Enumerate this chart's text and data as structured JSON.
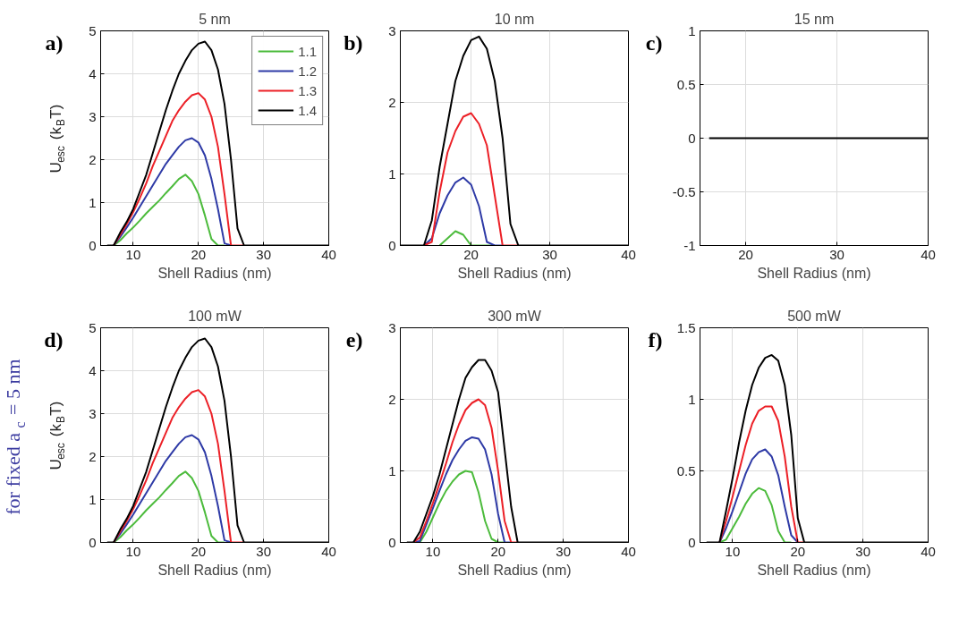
{
  "chart_data": [
    {
      "type": "line",
      "title": "5 nm",
      "xlabel": "Shell Radius (nm)",
      "ylabel": "U$_{esc}$ (k$_{B}$T)",
      "annotations": [
        "a)"
      ],
      "xlim": [
        5,
        40
      ],
      "ylim": [
        0,
        5
      ],
      "xticks": [
        10,
        20,
        30,
        40
      ],
      "yticks": [
        0,
        1,
        2,
        3,
        4,
        5
      ],
      "grid": true,
      "legend": "top right",
      "series": [
        {
          "name": "1.1",
          "color": "#4cbb3c",
          "x": [
            7,
            8,
            9,
            10,
            11,
            12,
            13,
            14,
            15,
            16,
            17,
            18,
            19,
            20,
            21,
            22,
            23,
            24
          ],
          "values": [
            0,
            0.12,
            0.28,
            0.42,
            0.58,
            0.75,
            0.9,
            1.05,
            1.22,
            1.38,
            1.55,
            1.65,
            1.5,
            1.2,
            0.7,
            0.15,
            0,
            0
          ]
        },
        {
          "name": "1.2",
          "color": "#2e3aa6",
          "x": [
            7,
            8,
            9,
            10,
            11,
            12,
            13,
            14,
            15,
            16,
            17,
            18,
            19,
            20,
            21,
            22,
            23,
            24,
            25
          ],
          "values": [
            0,
            0.2,
            0.42,
            0.65,
            0.9,
            1.15,
            1.4,
            1.65,
            1.9,
            2.1,
            2.3,
            2.45,
            2.5,
            2.4,
            2.1,
            1.55,
            0.85,
            0.05,
            0
          ]
        },
        {
          "name": "1.3",
          "color": "#ec2027",
          "x": [
            7,
            8,
            9,
            10,
            11,
            12,
            13,
            14,
            15,
            16,
            17,
            18,
            19,
            20,
            21,
            22,
            23,
            24,
            25,
            26,
            27
          ],
          "values": [
            0,
            0.25,
            0.5,
            0.78,
            1.1,
            1.45,
            1.85,
            2.2,
            2.55,
            2.9,
            3.15,
            3.35,
            3.5,
            3.55,
            3.4,
            3.0,
            2.3,
            1.2,
            0,
            0,
            0
          ]
        },
        {
          "name": "1.4",
          "color": "#000000",
          "x": [
            6,
            7,
            8,
            9,
            10,
            11,
            12,
            13,
            14,
            15,
            16,
            17,
            18,
            19,
            20,
            21,
            22,
            23,
            24,
            25,
            26,
            27,
            28,
            40
          ],
          "values": [
            0,
            0,
            0.3,
            0.55,
            0.85,
            1.25,
            1.65,
            2.15,
            2.65,
            3.15,
            3.6,
            4.0,
            4.3,
            4.55,
            4.7,
            4.75,
            4.55,
            4.1,
            3.3,
            2.0,
            0.4,
            0,
            0,
            0
          ]
        }
      ]
    },
    {
      "type": "line",
      "title": "10 nm",
      "xlabel": "Shell Radius (nm)",
      "annotations": [
        "b)"
      ],
      "xlim": [
        11,
        40
      ],
      "ylim": [
        0,
        3
      ],
      "xticks": [
        20,
        30,
        40
      ],
      "yticks": [
        0,
        1,
        2,
        3
      ],
      "grid": true,
      "series": [
        {
          "color": "#4cbb3c",
          "x": [
            16,
            17,
            18,
            19,
            20,
            21,
            22,
            23
          ],
          "values": [
            0,
            0.1,
            0.2,
            0.15,
            0,
            0,
            0,
            0
          ]
        },
        {
          "color": "#2e3aa6",
          "x": [
            14,
            15,
            16,
            17,
            18,
            19,
            20,
            21,
            22,
            23,
            24
          ],
          "values": [
            0,
            0.1,
            0.45,
            0.7,
            0.88,
            0.95,
            0.85,
            0.55,
            0.05,
            0,
            0
          ]
        },
        {
          "color": "#ec2027",
          "x": [
            14,
            15,
            16,
            17,
            18,
            19,
            20,
            21,
            22,
            23,
            24,
            25,
            26
          ],
          "values": [
            0,
            0.05,
            0.75,
            1.3,
            1.6,
            1.8,
            1.85,
            1.7,
            1.4,
            0.7,
            0,
            0,
            0
          ]
        },
        {
          "color": "#000000",
          "x": [
            11,
            12,
            13,
            14,
            15,
            16,
            17,
            18,
            19,
            20,
            21,
            22,
            23,
            24,
            25,
            26,
            27,
            40
          ],
          "values": [
            0,
            0,
            0,
            0,
            0.35,
            1.1,
            1.7,
            2.3,
            2.65,
            2.87,
            2.92,
            2.75,
            2.3,
            1.5,
            0.3,
            0,
            0,
            0
          ]
        }
      ]
    },
    {
      "type": "line",
      "title": "15 nm",
      "xlabel": "Shell Radius (nm)",
      "annotations": [
        "c)"
      ],
      "xlim": [
        15,
        40
      ],
      "ylim": [
        -1,
        1
      ],
      "xticks": [
        20,
        30,
        40
      ],
      "yticks": [
        -1,
        -0.5,
        0,
        0.5,
        1
      ],
      "grid": true,
      "series": [
        {
          "color": "#000000",
          "x": [
            16,
            40
          ],
          "values": [
            0,
            0
          ]
        }
      ]
    },
    {
      "type": "line",
      "title": "100 mW",
      "xlabel": "Shell Radius (nm)",
      "ylabel": "U$_{esc}$ (k$_{B}$T)",
      "annotations": [
        "d)",
        "for fixed a$_{c}$ = 5 nm"
      ],
      "xlim": [
        5,
        40
      ],
      "ylim": [
        0,
        5
      ],
      "xticks": [
        10,
        20,
        30,
        40
      ],
      "yticks": [
        0,
        1,
        2,
        3,
        4,
        5
      ],
      "grid": true,
      "series": [
        {
          "color": "#4cbb3c",
          "x": [
            7,
            8,
            9,
            10,
            11,
            12,
            13,
            14,
            15,
            16,
            17,
            18,
            19,
            20,
            21,
            22,
            23,
            24
          ],
          "values": [
            0,
            0.12,
            0.28,
            0.42,
            0.58,
            0.75,
            0.9,
            1.05,
            1.22,
            1.38,
            1.55,
            1.65,
            1.5,
            1.2,
            0.7,
            0.15,
            0,
            0
          ]
        },
        {
          "color": "#2e3aa6",
          "x": [
            7,
            8,
            9,
            10,
            11,
            12,
            13,
            14,
            15,
            16,
            17,
            18,
            19,
            20,
            21,
            22,
            23,
            24,
            25
          ],
          "values": [
            0,
            0.2,
            0.42,
            0.65,
            0.9,
            1.15,
            1.4,
            1.65,
            1.9,
            2.1,
            2.3,
            2.45,
            2.5,
            2.4,
            2.1,
            1.55,
            0.85,
            0.05,
            0
          ]
        },
        {
          "color": "#ec2027",
          "x": [
            7,
            8,
            9,
            10,
            11,
            12,
            13,
            14,
            15,
            16,
            17,
            18,
            19,
            20,
            21,
            22,
            23,
            24,
            25,
            26,
            27
          ],
          "values": [
            0,
            0.25,
            0.5,
            0.78,
            1.1,
            1.45,
            1.85,
            2.2,
            2.55,
            2.9,
            3.15,
            3.35,
            3.5,
            3.55,
            3.4,
            3.0,
            2.3,
            1.2,
            0,
            0,
            0
          ]
        },
        {
          "color": "#000000",
          "x": [
            6,
            7,
            8,
            9,
            10,
            11,
            12,
            13,
            14,
            15,
            16,
            17,
            18,
            19,
            20,
            21,
            22,
            23,
            24,
            25,
            26,
            27,
            28,
            40
          ],
          "values": [
            0,
            0,
            0.3,
            0.55,
            0.85,
            1.25,
            1.65,
            2.15,
            2.65,
            3.15,
            3.6,
            4.0,
            4.3,
            4.55,
            4.7,
            4.75,
            4.55,
            4.1,
            3.3,
            2.0,
            0.4,
            0,
            0,
            0
          ]
        }
      ]
    },
    {
      "type": "line",
      "title": "300 mW",
      "xlabel": "Shell Radius (nm)",
      "annotations": [
        "e)"
      ],
      "xlim": [
        5,
        40
      ],
      "ylim": [
        0,
        3
      ],
      "xticks": [
        10,
        20,
        30,
        40
      ],
      "yticks": [
        0,
        1,
        2,
        3
      ],
      "grid": true,
      "series": [
        {
          "color": "#4cbb3c",
          "x": [
            8,
            9,
            10,
            11,
            12,
            13,
            14,
            15,
            16,
            17,
            18,
            19,
            20,
            21
          ],
          "values": [
            0,
            0.15,
            0.35,
            0.55,
            0.72,
            0.85,
            0.95,
            1.0,
            0.98,
            0.7,
            0.3,
            0.05,
            0,
            0
          ]
        },
        {
          "color": "#2e3aa6",
          "x": [
            7,
            8,
            9,
            10,
            11,
            12,
            13,
            14,
            15,
            16,
            17,
            18,
            19,
            20,
            21,
            22
          ],
          "values": [
            0,
            0.02,
            0.25,
            0.48,
            0.72,
            0.95,
            1.15,
            1.3,
            1.42,
            1.47,
            1.45,
            1.3,
            0.95,
            0.4,
            0,
            0
          ]
        },
        {
          "color": "#ec2027",
          "x": [
            7,
            8,
            9,
            10,
            11,
            12,
            13,
            14,
            15,
            16,
            17,
            18,
            19,
            20,
            21,
            22,
            23
          ],
          "values": [
            0,
            0.07,
            0.3,
            0.55,
            0.82,
            1.1,
            1.4,
            1.65,
            1.85,
            1.95,
            2.0,
            1.92,
            1.6,
            1.0,
            0.3,
            0,
            0
          ]
        },
        {
          "color": "#000000",
          "x": [
            6,
            7,
            8,
            9,
            10,
            11,
            12,
            13,
            14,
            15,
            16,
            17,
            18,
            19,
            20,
            21,
            22,
            23,
            40
          ],
          "values": [
            0,
            0,
            0.15,
            0.4,
            0.65,
            0.95,
            1.3,
            1.65,
            2.0,
            2.3,
            2.45,
            2.55,
            2.55,
            2.4,
            2.1,
            1.3,
            0.5,
            0,
            0
          ]
        }
      ]
    },
    {
      "type": "line",
      "title": "500 mW",
      "xlabel": "Shell Radius (nm)",
      "annotations": [
        "f)"
      ],
      "xlim": [
        5,
        40
      ],
      "ylim": [
        0,
        1.5
      ],
      "xticks": [
        10,
        20,
        30,
        40
      ],
      "yticks": [
        0,
        0.5,
        1,
        1.5
      ],
      "grid": true,
      "series": [
        {
          "color": "#4cbb3c",
          "x": [
            8,
            9,
            10,
            11,
            12,
            13,
            14,
            15,
            16,
            17,
            18,
            19
          ],
          "values": [
            0,
            0.02,
            0.1,
            0.18,
            0.27,
            0.34,
            0.38,
            0.36,
            0.26,
            0.08,
            0,
            0
          ]
        },
        {
          "color": "#2e3aa6",
          "x": [
            8,
            9,
            10,
            11,
            12,
            13,
            14,
            15,
            16,
            17,
            18,
            19,
            20
          ],
          "values": [
            0,
            0.1,
            0.22,
            0.35,
            0.48,
            0.58,
            0.63,
            0.65,
            0.6,
            0.47,
            0.25,
            0.05,
            0
          ]
        },
        {
          "color": "#ec2027",
          "x": [
            8,
            9,
            10,
            11,
            12,
            13,
            14,
            15,
            16,
            17,
            18,
            19,
            20,
            21
          ],
          "values": [
            0,
            0.15,
            0.32,
            0.5,
            0.68,
            0.83,
            0.92,
            0.95,
            0.95,
            0.85,
            0.6,
            0.25,
            0,
            0
          ]
        },
        {
          "color": "#000000",
          "x": [
            6,
            7,
            8,
            9,
            10,
            11,
            12,
            13,
            14,
            15,
            16,
            17,
            18,
            19,
            20,
            21,
            40
          ],
          "values": [
            0,
            0,
            0,
            0.22,
            0.45,
            0.7,
            0.92,
            1.1,
            1.22,
            1.29,
            1.31,
            1.27,
            1.1,
            0.75,
            0.17,
            0,
            0
          ]
        }
      ]
    }
  ]
}
